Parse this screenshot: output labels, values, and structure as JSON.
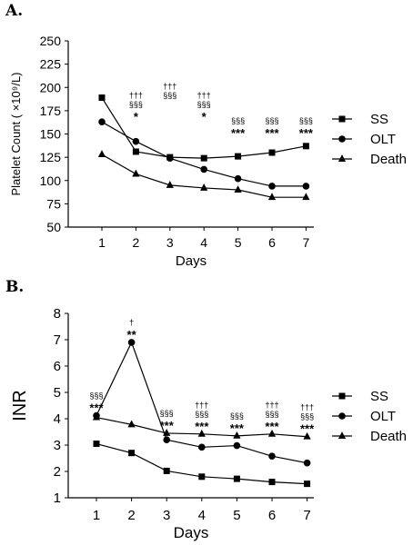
{
  "panel_labels": [
    "A.",
    "B."
  ],
  "chart_data": [
    {
      "type": "line",
      "title": "",
      "xlabel": "Days",
      "ylabel": "Platelet Count  ( ×10⁹/L)",
      "x": [
        1,
        2,
        3,
        4,
        5,
        6,
        7
      ],
      "ylim": [
        50,
        250
      ],
      "yticks": [
        50,
        75,
        100,
        125,
        150,
        175,
        200,
        225,
        250
      ],
      "grid": false,
      "legend_position": "right",
      "series": [
        {
          "name": "SS",
          "marker": "square",
          "values": [
            189,
            131,
            125,
            124,
            126,
            130,
            137
          ]
        },
        {
          "name": "OLT",
          "marker": "circle",
          "values": [
            163,
            142,
            124,
            112,
            102,
            94,
            94
          ]
        },
        {
          "name": "Death",
          "marker": "triangle",
          "values": [
            128,
            107,
            95,
            92,
            90,
            82,
            82
          ]
        }
      ],
      "annotations": [
        {
          "x": 2,
          "lines": [
            "†††",
            "§§§",
            "*"
          ]
        },
        {
          "x": 3,
          "lines": [
            "†††",
            "§§§"
          ]
        },
        {
          "x": 4,
          "lines": [
            "†††",
            "§§§",
            "*"
          ]
        },
        {
          "x": 5,
          "lines": [
            "§§§",
            "***"
          ]
        },
        {
          "x": 6,
          "lines": [
            "§§§",
            "***"
          ]
        },
        {
          "x": 7,
          "lines": [
            "§§§",
            "***"
          ]
        }
      ]
    },
    {
      "type": "line",
      "title": "",
      "xlabel": "Days",
      "ylabel": "INR",
      "x": [
        1,
        2,
        3,
        4,
        5,
        6,
        7
      ],
      "ylim": [
        1,
        8
      ],
      "yticks": [
        1,
        2,
        3,
        4,
        5,
        6,
        7,
        8
      ],
      "grid": false,
      "legend_position": "right",
      "series": [
        {
          "name": "SS",
          "marker": "square",
          "values": [
            3.05,
            2.7,
            2.02,
            1.8,
            1.72,
            1.6,
            1.53
          ]
        },
        {
          "name": "OLT",
          "marker": "circle",
          "values": [
            4.12,
            6.9,
            3.2,
            2.92,
            2.98,
            2.58,
            2.32
          ]
        },
        {
          "name": "Death",
          "marker": "triangle",
          "values": [
            4.05,
            3.78,
            3.45,
            3.42,
            3.35,
            3.42,
            3.32
          ]
        }
      ],
      "annotations": [
        {
          "x": 1,
          "lines": [
            "§§§",
            "***"
          ]
        },
        {
          "x": 2,
          "lines": [
            "†",
            "**"
          ]
        },
        {
          "x": 3,
          "lines": [
            "§§§",
            "***"
          ]
        },
        {
          "x": 4,
          "lines": [
            "†††",
            "§§§",
            "***"
          ]
        },
        {
          "x": 5,
          "lines": [
            "§§§",
            "***"
          ]
        },
        {
          "x": 6,
          "lines": [
            "†††",
            "§§§",
            "***"
          ]
        },
        {
          "x": 7,
          "lines": [
            "†††",
            "§§§",
            "***"
          ]
        }
      ]
    }
  ]
}
